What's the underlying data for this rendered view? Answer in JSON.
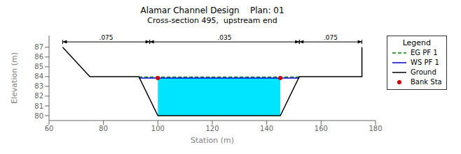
{
  "chart_data": {
    "type": "line",
    "title": "Alamar Channel Design    Plan: 01",
    "subtitle": "Cross-section 495,  upstream end",
    "x_label": "Station (m)",
    "y_label": "Elevation (m)",
    "xlim": [
      60,
      180
    ],
    "ylim": [
      79.5,
      88.2
    ],
    "xticks": [
      60,
      80,
      100,
      120,
      140,
      160,
      180
    ],
    "yticks": [
      80,
      81,
      82,
      83,
      84,
      85,
      86,
      87
    ],
    "grid": false,
    "legend": "upper right",
    "legend_title": "Legend",
    "series": [
      {
        "name": "EG PF 1",
        "type": "line",
        "color": "#008000",
        "line_style": "dashed",
        "x": [
          93,
          152
        ],
        "values": [
          83.95,
          83.95
        ]
      },
      {
        "name": "WS PF 1",
        "type": "line",
        "color": "#0000cd",
        "line_style": "solid",
        "x": [
          93,
          100,
          145,
          152
        ],
        "values": [
          83.85,
          83.85,
          83.85,
          83.85
        ]
      },
      {
        "name": "Ground",
        "type": "line",
        "color": "#000000",
        "line_style": "solid",
        "x": [
          65,
          65,
          75,
          93,
          100,
          145,
          152,
          170,
          175,
          175
        ],
        "values": [
          87.0,
          87.0,
          84.0,
          84.0,
          80.0,
          80.0,
          84.0,
          84.0,
          84.0,
          87.0
        ]
      },
      {
        "name": "Bank Sta",
        "type": "scatter",
        "color": "#cc0000",
        "marker": "circle",
        "x": [
          100,
          145
        ],
        "values": [
          83.85,
          83.85
        ]
      },
      {
        "type": "area",
        "color": "#00e5ff",
        "x": [
          100,
          100,
          145,
          145
        ],
        "values": [
          83.85,
          80.0,
          80.0,
          83.85
        ]
      }
    ],
    "annotations": [
      {
        "text": ".075",
        "x": [
          65,
          97
        ],
        "y": 87.55
      },
      {
        "text": ".035",
        "x": [
          97,
          152
        ],
        "y": 87.55
      },
      {
        "text": ".075",
        "x": [
          152,
          175
        ],
        "y": 87.55
      }
    ]
  }
}
